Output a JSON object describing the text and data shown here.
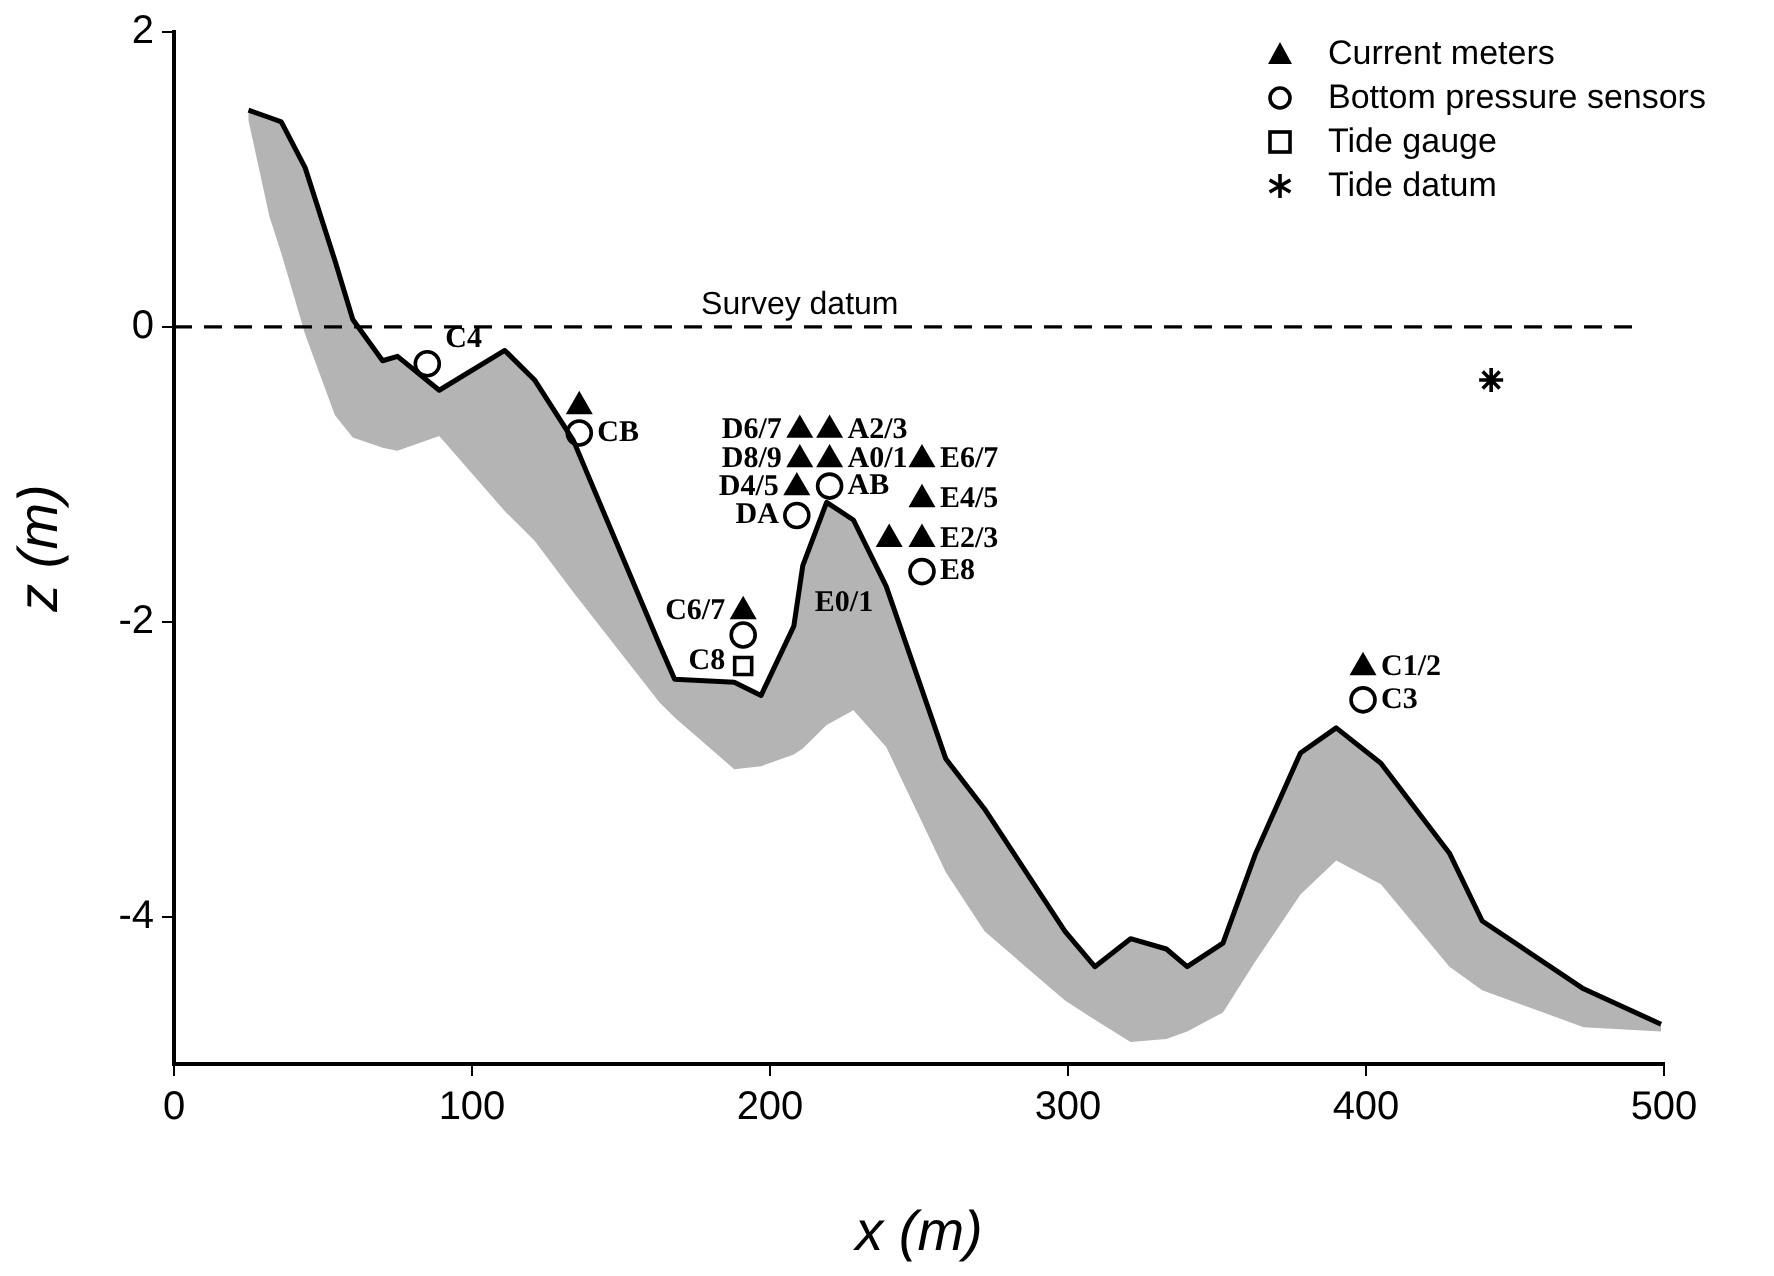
{
  "chart_data": {
    "type": "line",
    "xlabel": "x (m)",
    "ylabel": "z (m)",
    "xlim": [
      0,
      500
    ],
    "ylim": [
      -5,
      2
    ],
    "xticks": [
      0,
      100,
      200,
      300,
      400,
      500
    ],
    "yticks": [
      -4,
      -2,
      0,
      2
    ],
    "grid": false,
    "legend": "top right",
    "series": [
      {
        "color": "#000000",
        "marker": "none",
        "x": [
          25,
          32,
          36,
          44,
          54,
          60,
          70,
          75,
          89,
          111,
          121,
          134,
          163,
          168,
          188,
          197,
          208,
          211,
          219,
          228,
          239,
          259,
          272,
          299,
          309,
          321,
          333,
          340,
          352,
          363,
          378,
          390,
          405,
          428,
          439,
          473,
          499
        ],
        "values": [
          1.47,
          1.42,
          1.39,
          1.08,
          0.45,
          0.05,
          -0.23,
          -0.2,
          -0.43,
          -0.16,
          -0.36,
          -0.77,
          -2.16,
          -2.39,
          -2.41,
          -2.5,
          -2.03,
          -1.62,
          -1.19,
          -1.31,
          -1.76,
          -2.93,
          -3.27,
          -4.1,
          -4.34,
          -4.15,
          -4.22,
          -4.34,
          -4.18,
          -3.57,
          -2.89,
          -2.72,
          -2.96,
          -3.57,
          -4.03,
          -4.49,
          -4.73
        ],
        "upper": [
          1.47,
          1.42,
          1.39,
          1.08,
          0.45,
          0.05,
          -0.23,
          -0.2,
          -0.43,
          -0.16,
          -0.36,
          -0.77,
          -2.16,
          -2.39,
          -2.41,
          -2.5,
          -2.03,
          -1.62,
          -1.19,
          -1.31,
          -1.76,
          -2.93,
          -3.27,
          -4.1,
          -4.34,
          -4.15,
          -4.22,
          -4.34,
          -4.18,
          -3.57,
          -2.89,
          -2.72,
          -2.96,
          -3.57,
          -4.03,
          -4.49,
          -4.73
        ],
        "lower": [
          1.4,
          0.75,
          0.5,
          -0.05,
          -0.6,
          -0.75,
          -0.82,
          -0.84,
          -0.74,
          -1.25,
          -1.45,
          -1.8,
          -2.55,
          -2.65,
          -3.0,
          -2.98,
          -2.9,
          -2.86,
          -2.7,
          -2.6,
          -2.85,
          -3.7,
          -4.1,
          -4.57,
          -4.7,
          -4.85,
          -4.83,
          -4.78,
          -4.65,
          -4.3,
          -3.85,
          -3.62,
          -3.78,
          -4.34,
          -4.5,
          -4.75,
          -4.78
        ]
      },
      {
        "type": "scatter",
        "name": "Current meters",
        "color": "#000000",
        "marker": "triangle",
        "x": [
          136,
          210,
          220,
          210,
          220,
          209,
          251,
          251,
          251,
          240,
          191,
          399
        ],
        "values": [
          -0.54,
          -0.7,
          -0.7,
          -0.9,
          -0.9,
          -1.09,
          -0.9,
          -1.17,
          -1.44,
          -1.44,
          -1.93,
          -2.31
        ]
      },
      {
        "type": "scatter",
        "name": "Bottom pressure sensors",
        "color": "#000000",
        "marker": "circle",
        "x": [
          85,
          136,
          220,
          209,
          251,
          191,
          399
        ],
        "values": [
          -0.25,
          -0.72,
          -1.08,
          -1.28,
          -1.66,
          -2.09,
          -2.53
        ]
      },
      {
        "type": "scatter",
        "name": "Tide gauge",
        "color": "#000000",
        "marker": "square",
        "x": [
          191
        ],
        "values": [
          -2.3
        ]
      },
      {
        "type": "scatter",
        "name": "Tide datum",
        "color": "#000000",
        "marker": "cross",
        "x": [
          442
        ],
        "values": [
          -0.36
        ]
      }
    ],
    "ref_lines": [
      {
        "axis": "y",
        "value": 0,
        "label": "Survey datum",
        "line_style": "dashed",
        "color": "#000000"
      }
    ],
    "annotations": [
      {
        "text": "C4",
        "x": 85,
        "y": -0.25
      },
      {
        "text": "CB",
        "x": 136,
        "y": -0.72
      },
      {
        "text": "D6/7",
        "x": 210,
        "y": -0.7
      },
      {
        "text": "A2/3",
        "x": 220,
        "y": -0.7
      },
      {
        "text": "D8/9",
        "x": 210,
        "y": -0.9
      },
      {
        "text": "A0/1",
        "x": 220,
        "y": -0.9
      },
      {
        "text": "D4/5",
        "x": 209,
        "y": -1.09
      },
      {
        "text": "AB",
        "x": 220,
        "y": -1.08
      },
      {
        "text": "DA",
        "x": 209,
        "y": -1.28
      },
      {
        "text": "E6/7",
        "x": 251,
        "y": -0.9
      },
      {
        "text": "E4/5",
        "x": 251,
        "y": -1.17
      },
      {
        "text": "E2/3",
        "x": 251,
        "y": -1.44
      },
      {
        "text": "E0/1",
        "x": 240,
        "y": -1.44
      },
      {
        "text": "E8",
        "x": 251,
        "y": -1.66
      },
      {
        "text": "C6/7",
        "x": 191,
        "y": -1.93
      },
      {
        "text": "C8",
        "x": 191,
        "y": -2.09
      },
      {
        "text": "C1/2",
        "x": 399,
        "y": -2.31
      },
      {
        "text": "C3",
        "x": 399,
        "y": -2.53
      }
    ]
  }
}
